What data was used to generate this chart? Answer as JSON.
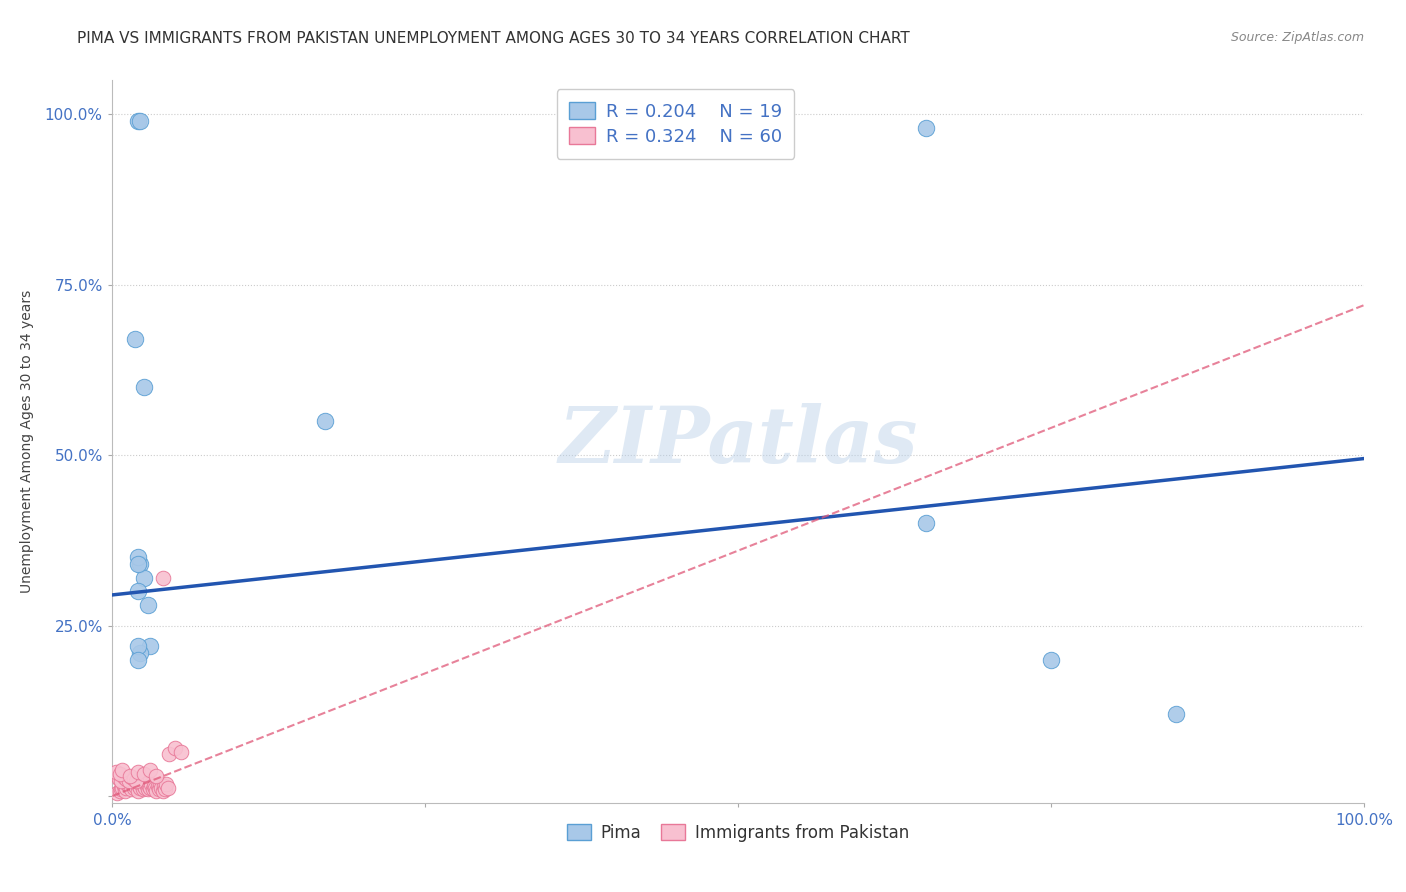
{
  "title": "PIMA VS IMMIGRANTS FROM PAKISTAN UNEMPLOYMENT AMONG AGES 30 TO 34 YEARS CORRELATION CHART",
  "source": "Source: ZipAtlas.com",
  "ylabel": "Unemployment Among Ages 30 to 34 years",
  "xlim": [
    0.0,
    1.0
  ],
  "ylim": [
    -0.01,
    1.05
  ],
  "xtick_positions": [
    0.0,
    0.25,
    0.5,
    0.75,
    1.0
  ],
  "xtick_labels": [
    "0.0%",
    "",
    "",
    "",
    "100.0%"
  ],
  "ytick_positions": [
    0.0,
    0.25,
    0.5,
    0.75,
    1.0
  ],
  "ytick_labels": [
    "",
    "25.0%",
    "50.0%",
    "75.0%",
    "100.0%"
  ],
  "watermark": "ZIPatlas",
  "pima_color": "#a8c8e8",
  "pima_edge_color": "#5a9fd4",
  "pakistan_color": "#f8c0d0",
  "pakistan_edge_color": "#e87898",
  "pima_R": 0.204,
  "pima_N": 19,
  "pakistan_R": 0.324,
  "pakistan_N": 60,
  "pima_line_color": "#2255b0",
  "pakistan_line_color": "#e05878",
  "legend_label_pima": "Pima",
  "legend_label_pakistan": "Immigrants from Pakistan",
  "pima_line_x0": 0.0,
  "pima_line_y0": 0.295,
  "pima_line_x1": 1.0,
  "pima_line_y1": 0.495,
  "pak_line_x0": 0.0,
  "pak_line_y0": 0.0,
  "pak_line_x1": 1.0,
  "pak_line_y1": 0.72,
  "pima_scatter_x": [
    0.018,
    0.022,
    0.025,
    0.02,
    0.03,
    0.025,
    0.02,
    0.17,
    0.02,
    0.022,
    0.028,
    0.022,
    0.65,
    0.85,
    0.75,
    0.02,
    0.65,
    0.02,
    0.02
  ],
  "pima_scatter_y": [
    0.67,
    0.34,
    0.32,
    0.35,
    0.22,
    0.6,
    0.3,
    0.55,
    0.99,
    0.99,
    0.28,
    0.21,
    0.4,
    0.12,
    0.2,
    0.34,
    0.98,
    0.22,
    0.2
  ],
  "pakistan_scatter_x": [
    0.004,
    0.006,
    0.007,
    0.008,
    0.009,
    0.01,
    0.011,
    0.012,
    0.013,
    0.014,
    0.015,
    0.016,
    0.017,
    0.018,
    0.019,
    0.02,
    0.021,
    0.022,
    0.023,
    0.024,
    0.025,
    0.026,
    0.027,
    0.028,
    0.029,
    0.03,
    0.031,
    0.032,
    0.033,
    0.034,
    0.035,
    0.036,
    0.037,
    0.038,
    0.039,
    0.04,
    0.041,
    0.042,
    0.043,
    0.044,
    0.005,
    0.007,
    0.009,
    0.011,
    0.013,
    0.015,
    0.017,
    0.019,
    0.003,
    0.006,
    0.008,
    0.014,
    0.02,
    0.025,
    0.03,
    0.035,
    0.04,
    0.045,
    0.05,
    0.055
  ],
  "pakistan_scatter_y": [
    0.005,
    0.008,
    0.01,
    0.012,
    0.015,
    0.008,
    0.012,
    0.018,
    0.015,
    0.02,
    0.01,
    0.018,
    0.012,
    0.015,
    0.02,
    0.008,
    0.015,
    0.012,
    0.018,
    0.01,
    0.015,
    0.012,
    0.018,
    0.01,
    0.015,
    0.012,
    0.018,
    0.01,
    0.015,
    0.012,
    0.008,
    0.015,
    0.01,
    0.018,
    0.012,
    0.008,
    0.015,
    0.01,
    0.018,
    0.012,
    0.025,
    0.022,
    0.028,
    0.025,
    0.022,
    0.028,
    0.025,
    0.022,
    0.035,
    0.032,
    0.038,
    0.03,
    0.035,
    0.032,
    0.038,
    0.03,
    0.32,
    0.062,
    0.07,
    0.065
  ],
  "background_color": "#ffffff",
  "grid_color": "#cccccc",
  "title_fontsize": 11,
  "axis_label_color": "#4472c4",
  "tick_label_fontsize": 11,
  "legend_color_text": "#4472c4",
  "legend_fontsize": 13
}
